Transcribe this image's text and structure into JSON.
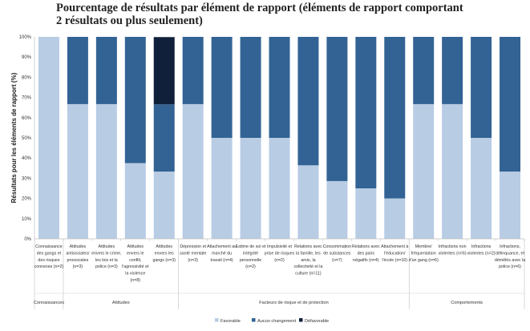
{
  "chart_data": {
    "type": "bar",
    "stacked": true,
    "title_lines": [
      "Pourcentage de résultats par élément de rapport (éléments de rapport comportant",
      "2 résultats ou plus seulement)"
    ],
    "ylabel": "Résultats pour les éléments de rapport (%)",
    "ylim": [
      0,
      100
    ],
    "yticks": [
      "0%",
      "10%",
      "20%",
      "30%",
      "40%",
      "50%",
      "60%",
      "70%",
      "80%",
      "90%",
      "100%"
    ],
    "categories": [
      [
        "Connaissance",
        "des gangs et",
        "des risques",
        "connexes (n=2)"
      ],
      [
        "Attitudes",
        "antisociales/",
        "prosociales",
        "(n=3)"
      ],
      [
        "Attitudes",
        "envers le crime,",
        "les lois et la",
        "police (n=3)"
      ],
      [
        "Attitudes",
        "envers le",
        "conflit,",
        "l'agressivité et",
        "la violence",
        "(n=8)"
      ],
      [
        "Attitudes",
        "envers les",
        "gangs (n=3)"
      ],
      [
        "Dépression et",
        "santé mentale",
        "(n=3)"
      ],
      [
        "Attachement au",
        "marché du",
        "travail (n=4)"
      ],
      [
        "Estime de soi et",
        "intégrité",
        "personnelle",
        "(n=2)"
      ],
      [
        "Impulsivité et",
        "prise de risques",
        "(n=2)"
      ],
      [
        "Relations avec",
        "la famille, les",
        "amis, la",
        "collectivité et la",
        "culture (n=11)"
      ],
      [
        "Consommation",
        "de substances",
        "(n=7)"
      ],
      [
        "Relations avec",
        "des pairs",
        "négatifs (n=4)"
      ],
      [
        "Attachement à",
        "l'éducation/",
        "l'école (n=10)"
      ],
      [
        "Membre/",
        "fréquentation",
        "d'un gang (n=6)"
      ],
      [
        "Infractions non",
        "violentes (n=6)"
      ],
      [
        "Infractions",
        "violentes (n=2)"
      ],
      [
        "Infractions,",
        "délinquance, et",
        "démêlés avec la",
        "police (n=6)"
      ]
    ],
    "groups": [
      {
        "label": "Connaissances",
        "start": 0,
        "end": 0
      },
      {
        "label": "Attitudes",
        "start": 1,
        "end": 4
      },
      {
        "label": "Facteurs de risque et de protection",
        "start": 5,
        "end": 12
      },
      {
        "label": "Comportements",
        "start": 13,
        "end": 16
      }
    ],
    "series": [
      {
        "name": "Favorable",
        "color": "#b8cce4",
        "values": [
          100,
          66.7,
          66.7,
          37.5,
          33.3,
          66.7,
          50,
          50,
          50,
          36.4,
          28.6,
          25,
          20,
          66.7,
          66.7,
          50,
          33.3
        ]
      },
      {
        "name": "Aucun changement",
        "color": "#336394",
        "values": [
          0,
          33.3,
          33.3,
          62.5,
          33.3,
          33.3,
          50,
          50,
          50,
          63.6,
          71.4,
          75,
          80,
          33.3,
          33.3,
          50,
          66.7
        ]
      },
      {
        "name": "Défavorable",
        "color": "#11203a",
        "values": [
          0,
          0,
          0,
          0,
          33.3,
          0,
          0,
          0,
          0,
          0,
          0,
          0,
          0,
          0,
          0,
          0,
          0
        ]
      }
    ],
    "legend_position": "bottom",
    "grid": false
  }
}
